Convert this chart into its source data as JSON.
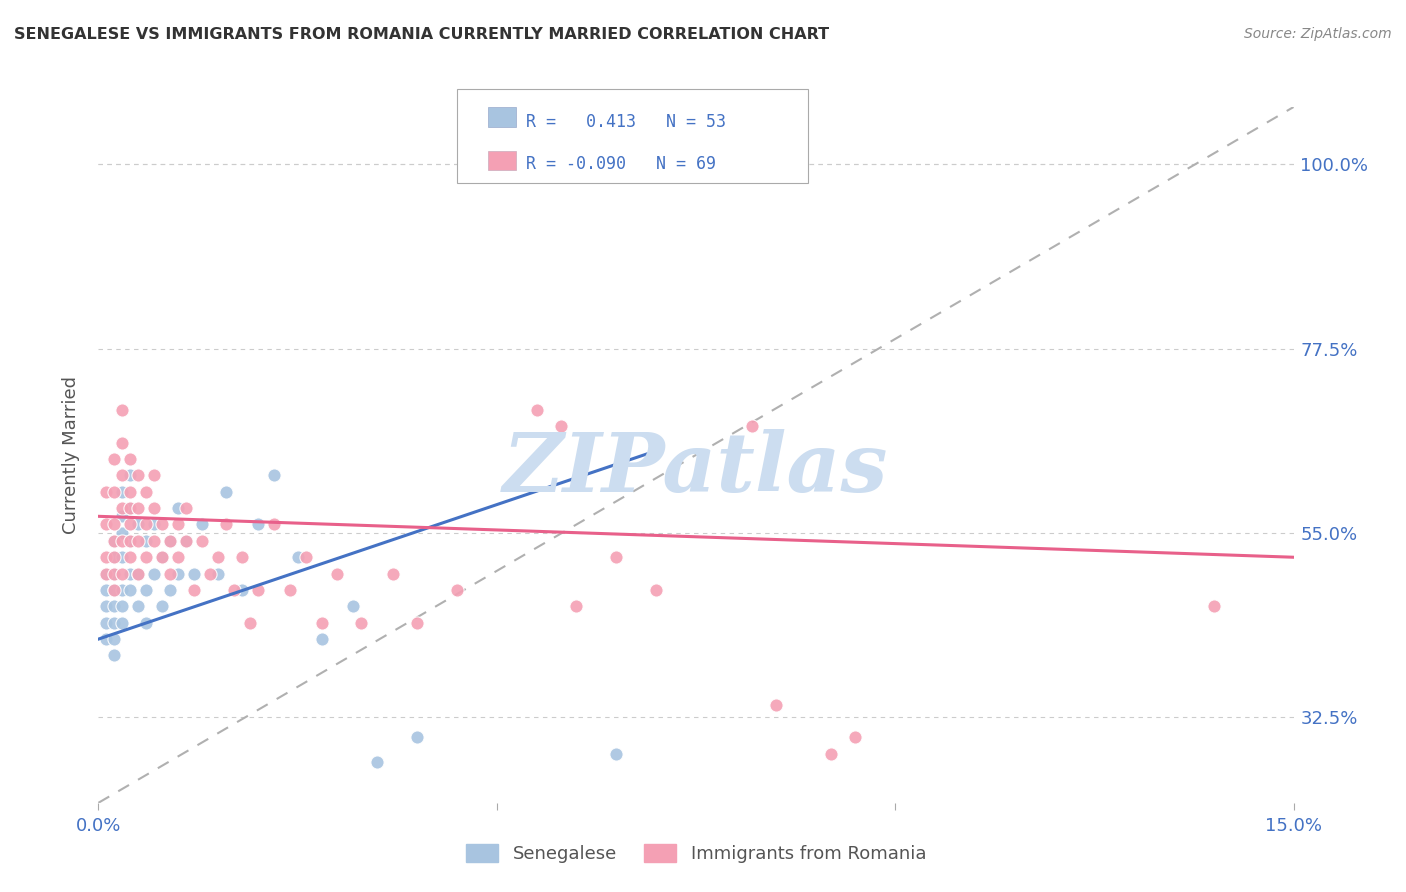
{
  "title": "SENEGALESE VS IMMIGRANTS FROM ROMANIA CURRENTLY MARRIED CORRELATION CHART",
  "source": "Source: ZipAtlas.com",
  "ylabel": "Currently Married",
  "ytick_labels": [
    "32.5%",
    "55.0%",
    "77.5%",
    "100.0%"
  ],
  "ytick_values": [
    0.325,
    0.55,
    0.775,
    1.0
  ],
  "xlim": [
    0.0,
    0.15
  ],
  "ylim": [
    0.22,
    1.07
  ],
  "color_senegalese": "#a8c4e0",
  "color_romania": "#f4a0b4",
  "color_blue": "#4472c4",
  "color_pink": "#e8608a",
  "watermark": "ZIPatlas",
  "watermark_color": "#ccddf0",
  "background_color": "#ffffff",
  "r_senegalese": 0.413,
  "n_senegalese": 53,
  "r_romania": -0.09,
  "n_romania": 69,
  "sen_line_x": [
    0.0,
    0.07
  ],
  "sen_line_y": [
    0.42,
    0.65
  ],
  "rom_line_x": [
    0.0,
    0.15
  ],
  "rom_line_y": [
    0.57,
    0.52
  ],
  "diag_line_x": [
    0.0,
    0.15
  ],
  "diag_line_y": [
    0.22,
    1.07
  ],
  "senegalese_x": [
    0.001,
    0.001,
    0.001,
    0.001,
    0.001,
    0.002,
    0.002,
    0.002,
    0.002,
    0.002,
    0.002,
    0.002,
    0.002,
    0.003,
    0.003,
    0.003,
    0.003,
    0.003,
    0.003,
    0.003,
    0.004,
    0.004,
    0.004,
    0.004,
    0.004,
    0.005,
    0.005,
    0.005,
    0.006,
    0.006,
    0.006,
    0.007,
    0.007,
    0.008,
    0.008,
    0.009,
    0.009,
    0.01,
    0.01,
    0.011,
    0.012,
    0.013,
    0.015,
    0.016,
    0.018,
    0.02,
    0.022,
    0.025,
    0.028,
    0.032,
    0.035,
    0.04,
    0.065
  ],
  "senegalese_y": [
    0.46,
    0.48,
    0.5,
    0.44,
    0.42,
    0.44,
    0.46,
    0.48,
    0.5,
    0.52,
    0.54,
    0.42,
    0.4,
    0.44,
    0.46,
    0.48,
    0.52,
    0.55,
    0.57,
    0.6,
    0.48,
    0.5,
    0.54,
    0.58,
    0.62,
    0.46,
    0.5,
    0.56,
    0.44,
    0.48,
    0.54,
    0.5,
    0.56,
    0.46,
    0.52,
    0.48,
    0.54,
    0.5,
    0.58,
    0.54,
    0.5,
    0.56,
    0.5,
    0.6,
    0.48,
    0.56,
    0.62,
    0.52,
    0.42,
    0.46,
    0.27,
    0.3,
    0.28
  ],
  "romania_x": [
    0.001,
    0.001,
    0.001,
    0.001,
    0.002,
    0.002,
    0.002,
    0.002,
    0.002,
    0.002,
    0.002,
    0.003,
    0.003,
    0.003,
    0.003,
    0.003,
    0.003,
    0.004,
    0.004,
    0.004,
    0.004,
    0.004,
    0.004,
    0.005,
    0.005,
    0.005,
    0.005,
    0.006,
    0.006,
    0.006,
    0.007,
    0.007,
    0.007,
    0.008,
    0.008,
    0.009,
    0.009,
    0.01,
    0.01,
    0.011,
    0.011,
    0.012,
    0.013,
    0.014,
    0.015,
    0.016,
    0.017,
    0.018,
    0.019,
    0.02,
    0.022,
    0.024,
    0.026,
    0.028,
    0.03,
    0.033,
    0.037,
    0.04,
    0.045,
    0.055,
    0.058,
    0.06,
    0.065,
    0.07,
    0.082,
    0.085,
    0.092,
    0.095,
    0.14
  ],
  "romania_y": [
    0.5,
    0.52,
    0.56,
    0.6,
    0.48,
    0.52,
    0.56,
    0.6,
    0.64,
    0.5,
    0.54,
    0.5,
    0.54,
    0.58,
    0.62,
    0.66,
    0.7,
    0.52,
    0.56,
    0.6,
    0.64,
    0.54,
    0.58,
    0.5,
    0.54,
    0.58,
    0.62,
    0.52,
    0.56,
    0.6,
    0.54,
    0.58,
    0.62,
    0.52,
    0.56,
    0.5,
    0.54,
    0.52,
    0.56,
    0.54,
    0.58,
    0.48,
    0.54,
    0.5,
    0.52,
    0.56,
    0.48,
    0.52,
    0.44,
    0.48,
    0.56,
    0.48,
    0.52,
    0.44,
    0.5,
    0.44,
    0.5,
    0.44,
    0.48,
    0.7,
    0.68,
    0.46,
    0.52,
    0.48,
    0.68,
    0.34,
    0.28,
    0.3,
    0.46
  ]
}
